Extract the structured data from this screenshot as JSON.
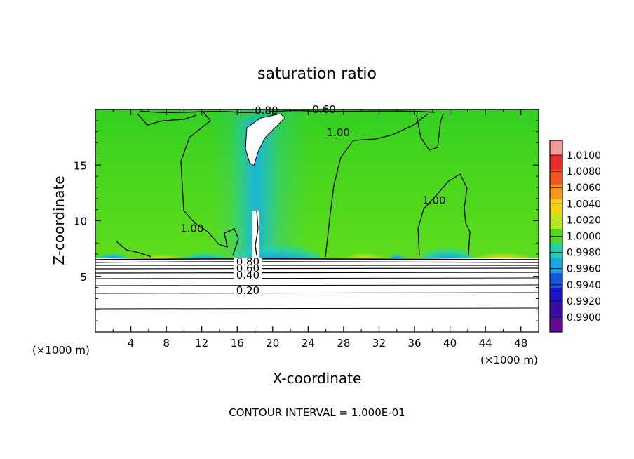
{
  "chart_data": {
    "type": "heatmap",
    "title": "saturation ratio",
    "xlabel": "X-coordinate",
    "ylabel": "Z-coordinate",
    "x_units": "(×1000 m)",
    "x_units_right": "(×1000 m)",
    "footer": "CONTOUR INTERVAL = 1.000E-01",
    "xlim": [
      0,
      50
    ],
    "ylim": [
      0,
      20
    ],
    "x_ticks": [
      4,
      8,
      12,
      16,
      20,
      24,
      28,
      32,
      36,
      40,
      44,
      48
    ],
    "y_ticks": [
      5,
      10,
      15
    ],
    "colorbar": {
      "min": 0.99,
      "max": 1.01,
      "labels": [
        "1.0100",
        "1.0080",
        "1.0060",
        "1.0040",
        "1.0020",
        "1.0000",
        "0.9980",
        "0.9960",
        "0.9940",
        "0.9920",
        "0.9900"
      ],
      "colors": [
        "#f39b9b",
        "#ee2b2b",
        "#f2581e",
        "#f8961a",
        "#f3d40c",
        "#b6e81a",
        "#52d81c",
        "#1ed2b0",
        "#19a7e3",
        "#1359e0",
        "#1e14c6",
        "#3c0ca0",
        "#660a96"
      ]
    },
    "contour_labels": [
      {
        "text": "0.80",
        "x": 19.3,
        "y": 19.6
      },
      {
        "text": "0.60",
        "x": 25.8,
        "y": 19.7
      },
      {
        "text": "1.00",
        "x": 10.9,
        "y": 9.0
      },
      {
        "text": "1.00",
        "x": 27.4,
        "y": 17.6
      },
      {
        "text": "1.00",
        "x": 38.2,
        "y": 11.5
      },
      {
        "text": "0.80",
        "x": 17.2,
        "y": 6.0
      },
      {
        "text": "0.60",
        "x": 17.2,
        "y": 5.4
      },
      {
        "text": "0.40",
        "x": 17.2,
        "y": 4.8
      },
      {
        "text": "0.20",
        "x": 17.2,
        "y": 3.4
      }
    ],
    "grid": false
  }
}
